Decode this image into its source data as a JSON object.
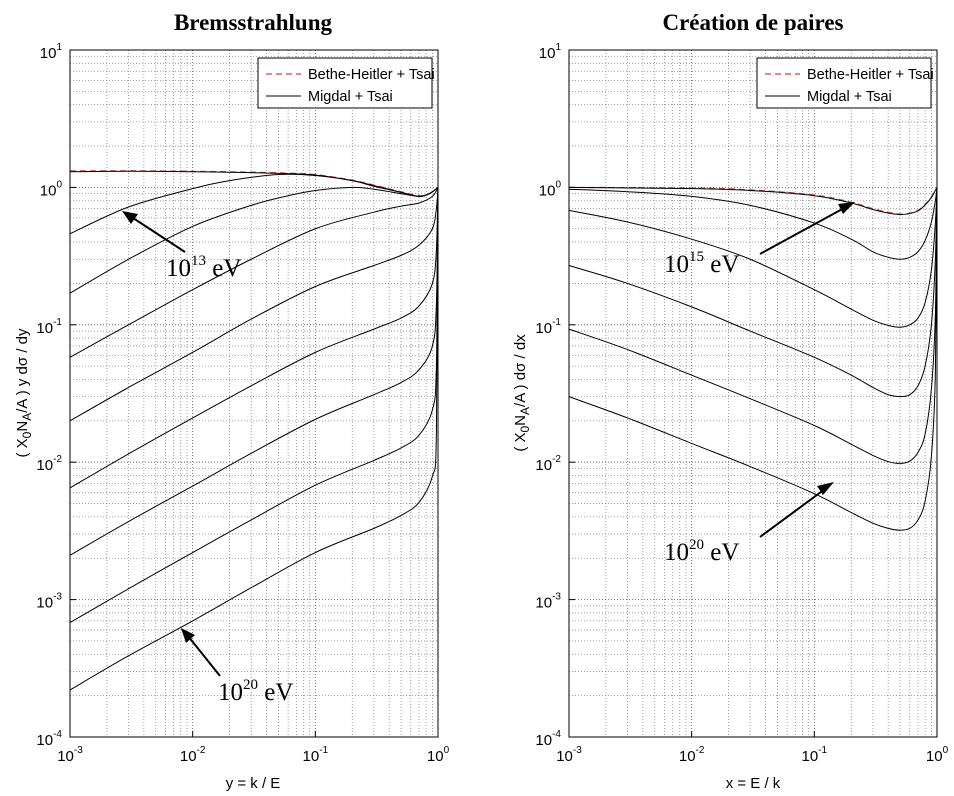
{
  "chart_data": [
    {
      "type": "line",
      "title": "Bremsstrahlung",
      "xlabel": "y = k / E",
      "ylabel": "( X0NA/A ) y dσ / dy",
      "xscale": "log",
      "yscale": "log",
      "xlim": [
        0.001,
        1
      ],
      "ylim": [
        0.0001,
        10
      ],
      "xticks": [
        {
          "base": "10",
          "exp": "-3"
        },
        {
          "base": "10",
          "exp": "-2"
        },
        {
          "base": "10",
          "exp": "-1"
        },
        {
          "base": "10",
          "exp": "0"
        }
      ],
      "yticks": [
        {
          "base": "10",
          "exp": "-4"
        },
        {
          "base": "10",
          "exp": "-3"
        },
        {
          "base": "10",
          "exp": "-2"
        },
        {
          "base": "10",
          "exp": "-1"
        },
        {
          "base": "10",
          "exp": "0"
        },
        {
          "base": "10",
          "exp": "1"
        }
      ],
      "grid": true,
      "legend": {
        "placement": "top-right",
        "entries": [
          {
            "label": "Bethe-Heitler + Tsai",
            "style": "dashed",
            "color": "#d04040"
          },
          {
            "label": "Migdal + Tsai",
            "style": "solid",
            "color": "#000000"
          }
        ]
      },
      "series": [
        {
          "legend": "Bethe-Heitler + Tsai",
          "style": "dashed",
          "color": "#d04040",
          "x": [
            0.001,
            0.003,
            0.01,
            0.03,
            0.06,
            0.1,
            0.2,
            0.3,
            0.5,
            0.7,
            0.85,
            1.0
          ],
          "y": [
            1.32,
            1.32,
            1.31,
            1.29,
            1.27,
            1.24,
            1.13,
            1.04,
            0.93,
            0.87,
            0.9,
            1.0
          ]
        },
        {
          "legend": "Migdal + Tsai",
          "style": "solid",
          "color": "#000000",
          "x": [
            0.001,
            0.003,
            0.01,
            0.03,
            0.06,
            0.1,
            0.2,
            0.3,
            0.5,
            0.7,
            0.85,
            1.0
          ],
          "y": [
            1.3,
            1.31,
            1.3,
            1.28,
            1.26,
            1.23,
            1.12,
            1.03,
            0.92,
            0.86,
            0.9,
            1.0
          ]
        },
        {
          "legend": "Migdal + Tsai",
          "style": "solid",
          "color": "#000000",
          "x": [
            0.001,
            0.003,
            0.01,
            0.02,
            0.05,
            0.1,
            0.2,
            0.3,
            0.5,
            0.7,
            0.85,
            1.0
          ],
          "y": [
            0.46,
            0.72,
            0.98,
            1.12,
            1.24,
            1.22,
            1.12,
            1.02,
            0.92,
            0.86,
            0.9,
            1.0
          ]
        },
        {
          "legend": "Migdal + Tsai",
          "style": "solid",
          "color": "#000000",
          "x": [
            0.001,
            0.003,
            0.01,
            0.03,
            0.06,
            0.1,
            0.2,
            0.3,
            0.5,
            0.7,
            0.85,
            1.0
          ],
          "y": [
            0.17,
            0.3,
            0.52,
            0.74,
            0.87,
            0.95,
            1.0,
            0.97,
            0.9,
            0.86,
            0.9,
            1.0
          ]
        },
        {
          "legend": "Migdal + Tsai",
          "style": "solid",
          "color": "#000000",
          "x": [
            0.001,
            0.003,
            0.01,
            0.03,
            0.1,
            0.3,
            0.5,
            0.7,
            0.9,
            1.0
          ],
          "y": [
            0.058,
            0.1,
            0.18,
            0.3,
            0.5,
            0.66,
            0.73,
            0.77,
            0.86,
            1.0
          ]
        },
        {
          "legend": "Migdal + Tsai",
          "style": "solid",
          "color": "#000000",
          "x": [
            0.001,
            0.003,
            0.01,
            0.03,
            0.1,
            0.3,
            0.5,
            0.7,
            0.9,
            0.97,
            1.0
          ],
          "y": [
            0.02,
            0.035,
            0.063,
            0.11,
            0.19,
            0.27,
            0.32,
            0.38,
            0.5,
            0.7,
            1.0
          ]
        },
        {
          "legend": "Migdal + Tsai",
          "style": "solid",
          "color": "#000000",
          "x": [
            0.001,
            0.003,
            0.01,
            0.03,
            0.1,
            0.3,
            0.5,
            0.7,
            0.9,
            0.97,
            1.0
          ],
          "y": [
            0.0065,
            0.0115,
            0.021,
            0.036,
            0.063,
            0.093,
            0.112,
            0.137,
            0.2,
            0.35,
            1.0
          ]
        },
        {
          "legend": "Migdal + Tsai",
          "style": "solid",
          "color": "#000000",
          "x": [
            0.001,
            0.003,
            0.01,
            0.03,
            0.1,
            0.3,
            0.5,
            0.7,
            0.9,
            0.97,
            1.0
          ],
          "y": [
            0.0021,
            0.0037,
            0.0067,
            0.0116,
            0.0205,
            0.031,
            0.038,
            0.047,
            0.07,
            0.14,
            1.0
          ]
        },
        {
          "legend": "Migdal + Tsai",
          "style": "solid",
          "color": "#000000",
          "x": [
            0.001,
            0.003,
            0.01,
            0.03,
            0.1,
            0.3,
            0.5,
            0.7,
            0.9,
            0.97,
            1.0
          ],
          "y": [
            0.00068,
            0.0012,
            0.0022,
            0.0038,
            0.0068,
            0.0103,
            0.0127,
            0.0157,
            0.024,
            0.05,
            1.0
          ]
        },
        {
          "legend": "Migdal + Tsai",
          "style": "solid",
          "color": "#000000",
          "x": [
            0.001,
            0.003,
            0.01,
            0.03,
            0.1,
            0.3,
            0.5,
            0.7,
            0.9,
            0.97,
            1.0
          ],
          "y": [
            0.00022,
            0.00039,
            0.0007,
            0.00122,
            0.0022,
            0.0033,
            0.0041,
            0.0051,
            0.0079,
            0.016,
            0.9
          ]
        }
      ],
      "annotations": [
        {
          "base": "10",
          "exp": "13",
          "unit": "eV"
        },
        {
          "base": "10",
          "exp": "20",
          "unit": "eV"
        }
      ]
    },
    {
      "type": "line",
      "title": "Création de paires",
      "xlabel": "x = E / k",
      "ylabel": "( X0NA/A ) dσ / dx",
      "xscale": "log",
      "yscale": "log",
      "xlim": [
        0.001,
        1
      ],
      "ylim": [
        0.0001,
        10
      ],
      "xticks": [
        {
          "base": "10",
          "exp": "-3"
        },
        {
          "base": "10",
          "exp": "-2"
        },
        {
          "base": "10",
          "exp": "-1"
        },
        {
          "base": "10",
          "exp": "0"
        }
      ],
      "yticks": [
        {
          "base": "10",
          "exp": "-4"
        },
        {
          "base": "10",
          "exp": "-3"
        },
        {
          "base": "10",
          "exp": "-2"
        },
        {
          "base": "10",
          "exp": "-1"
        },
        {
          "base": "10",
          "exp": "0"
        },
        {
          "base": "10",
          "exp": "1"
        }
      ],
      "grid": true,
      "legend": {
        "placement": "top-right",
        "entries": [
          {
            "label": "Bethe-Heitler + Tsai",
            "style": "dashed",
            "color": "#d04040"
          },
          {
            "label": "Migdal + Tsai",
            "style": "solid",
            "color": "#000000"
          }
        ]
      },
      "series": [
        {
          "legend": "Bethe-Heitler + Tsai",
          "style": "dashed",
          "color": "#d04040",
          "x": [
            0.001,
            0.01,
            0.03,
            0.1,
            0.2,
            0.3,
            0.4,
            0.5,
            0.6,
            0.7,
            0.8,
            0.9,
            1.0
          ],
          "y": [
            1.0,
            0.99,
            0.96,
            0.88,
            0.78,
            0.7,
            0.66,
            0.64,
            0.65,
            0.68,
            0.75,
            0.85,
            1.0
          ]
        },
        {
          "legend": "Migdal + Tsai",
          "style": "solid",
          "color": "#000000",
          "x": [
            0.001,
            0.01,
            0.03,
            0.1,
            0.2,
            0.3,
            0.4,
            0.5,
            0.6,
            0.7,
            0.8,
            0.9,
            1.0
          ],
          "y": [
            1.0,
            0.98,
            0.95,
            0.87,
            0.77,
            0.69,
            0.65,
            0.635,
            0.645,
            0.675,
            0.745,
            0.845,
            1.0
          ]
        },
        {
          "legend": "Migdal + Tsai",
          "style": "solid",
          "color": "#000000",
          "x": [
            0.001,
            0.003,
            0.01,
            0.03,
            0.1,
            0.2,
            0.3,
            0.4,
            0.5,
            0.6,
            0.7,
            0.8,
            0.9,
            0.97,
            1.0
          ],
          "y": [
            0.97,
            0.93,
            0.86,
            0.74,
            0.55,
            0.42,
            0.34,
            0.31,
            0.3,
            0.31,
            0.34,
            0.41,
            0.56,
            0.8,
            1.0
          ]
        },
        {
          "legend": "Migdal + Tsai",
          "style": "solid",
          "color": "#000000",
          "x": [
            0.001,
            0.003,
            0.01,
            0.03,
            0.1,
            0.2,
            0.3,
            0.4,
            0.5,
            0.6,
            0.7,
            0.8,
            0.9,
            0.97,
            1.0
          ],
          "y": [
            0.68,
            0.56,
            0.42,
            0.3,
            0.18,
            0.13,
            0.108,
            0.099,
            0.096,
            0.1,
            0.112,
            0.145,
            0.25,
            0.55,
            1.0
          ]
        },
        {
          "legend": "Migdal + Tsai",
          "style": "solid",
          "color": "#000000",
          "x": [
            0.001,
            0.003,
            0.01,
            0.03,
            0.1,
            0.2,
            0.3,
            0.4,
            0.5,
            0.6,
            0.7,
            0.8,
            0.9,
            0.97,
            1.0
          ],
          "y": [
            0.27,
            0.2,
            0.135,
            0.09,
            0.058,
            0.043,
            0.035,
            0.031,
            0.03,
            0.031,
            0.036,
            0.05,
            0.1,
            0.3,
            1.0
          ]
        },
        {
          "legend": "Migdal + Tsai",
          "style": "solid",
          "color": "#000000",
          "x": [
            0.001,
            0.003,
            0.01,
            0.03,
            0.1,
            0.2,
            0.3,
            0.4,
            0.5,
            0.6,
            0.7,
            0.8,
            0.9,
            0.97,
            1.0
          ],
          "y": [
            0.093,
            0.066,
            0.043,
            0.029,
            0.0185,
            0.0135,
            0.0112,
            0.0101,
            0.0098,
            0.0102,
            0.0118,
            0.016,
            0.034,
            0.12,
            1.0
          ]
        },
        {
          "legend": "Migdal + Tsai",
          "style": "solid",
          "color": "#000000",
          "x": [
            0.001,
            0.003,
            0.01,
            0.03,
            0.1,
            0.2,
            0.3,
            0.4,
            0.5,
            0.6,
            0.7,
            0.8,
            0.9,
            0.97,
            1.0
          ],
          "y": [
            0.03,
            0.021,
            0.0137,
            0.0093,
            0.0059,
            0.0043,
            0.0036,
            0.0033,
            0.0032,
            0.0033,
            0.0038,
            0.0052,
            0.011,
            0.045,
            0.9
          ]
        }
      ],
      "annotations": [
        {
          "base": "10",
          "exp": "15",
          "unit": "eV"
        },
        {
          "base": "10",
          "exp": "20",
          "unit": "eV"
        }
      ]
    }
  ]
}
